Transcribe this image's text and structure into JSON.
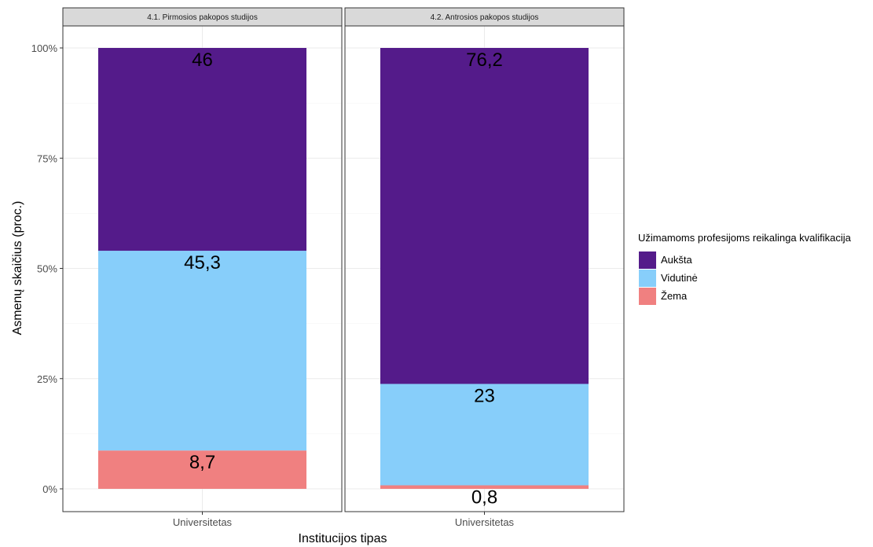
{
  "chart_data": {
    "type": "bar",
    "stacked": true,
    "orientation": "vertical",
    "y_format": "percent",
    "ylim": [
      0,
      100
    ],
    "yticks": [
      "0%",
      "25%",
      "50%",
      "75%",
      "100%"
    ],
    "xlabel": "Institucijos tipas",
    "ylabel": "Asmenų skaičius (proc.)",
    "grid": true,
    "legend": {
      "title": "Užimamoms profesijoms reikalinga kvalifikacija",
      "position": "right",
      "items": [
        {
          "name": "Aukšta",
          "color": "#541b8a"
        },
        {
          "name": "Vidutinė",
          "color": "#87cefa"
        },
        {
          "name": "Žema",
          "color": "#f08080"
        }
      ]
    },
    "panels": [
      {
        "strip": "4.1. Pirmosios pakopos studijos",
        "category": "Universitetas",
        "segments": [
          {
            "name": "Žema",
            "value": 8.7,
            "label": "8,7",
            "color": "#f08080"
          },
          {
            "name": "Vidutinė",
            "value": 45.3,
            "label": "45,3",
            "color": "#87cefa"
          },
          {
            "name": "Aukšta",
            "value": 46,
            "label": "46",
            "color": "#541b8a"
          }
        ]
      },
      {
        "strip": "4.2. Antrosios pakopos studijos",
        "category": "Universitetas",
        "segments": [
          {
            "name": "Žema",
            "value": 0.8,
            "label": "0,8",
            "color": "#f08080"
          },
          {
            "name": "Vidutinė",
            "value": 23,
            "label": "23",
            "color": "#87cefa"
          },
          {
            "name": "Aukšta",
            "value": 76.2,
            "label": "76,2",
            "color": "#541b8a"
          }
        ]
      }
    ]
  }
}
